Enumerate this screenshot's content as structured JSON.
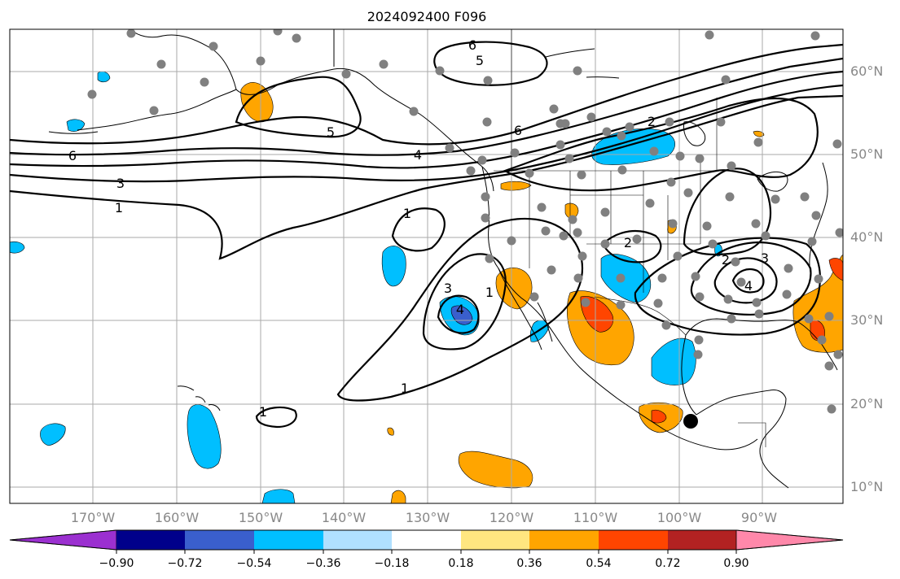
{
  "title": "2024092400 F096",
  "lat_labels": [
    "60°N",
    "50°N",
    "40°N",
    "30°N",
    "20°N",
    "10°N"
  ],
  "lon_labels": [
    "170°W",
    "160°W",
    "150°W",
    "140°W",
    "130°W",
    "120°W",
    "110°W",
    "100°W",
    "90°W"
  ],
  "colorbar": {
    "tick_labels": [
      "−0.90",
      "−0.72",
      "−0.54",
      "−0.36",
      "−0.18",
      "0.18",
      "0.36",
      "0.54",
      "0.72",
      "0.90"
    ],
    "colors": [
      "#9b30d0",
      "#00008b",
      "#3a5fcd",
      "#00bfff",
      "#b0e0ff",
      "#ffffff",
      "#ffe680",
      "#ffa500",
      "#ff4500",
      "#b22222",
      "#ff88aa"
    ]
  },
  "contour_labels": [
    "6",
    "5",
    "6",
    "5",
    "6",
    "4",
    "3",
    "1",
    "1",
    "1",
    "1",
    "1",
    "3",
    "3",
    "4",
    "2",
    "2",
    "2",
    "4"
  ],
  "colors": {
    "grid": "#aaaaaa",
    "coast": "#000000",
    "contour": "#000000",
    "station": "#808080"
  }
}
